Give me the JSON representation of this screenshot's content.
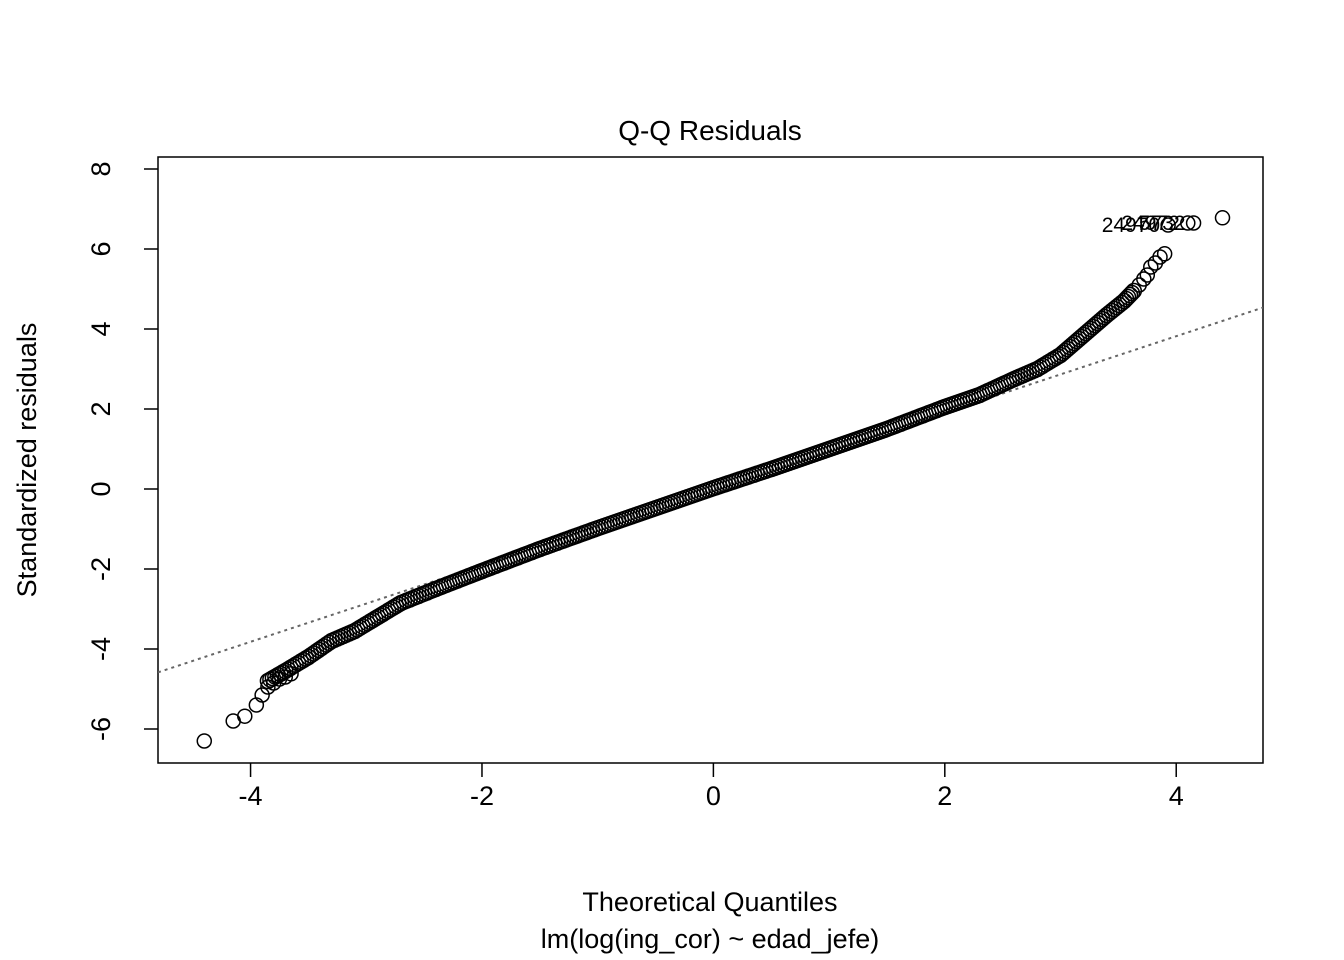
{
  "chart_data": {
    "type": "scatter",
    "title": "Q-Q Residuals",
    "xlabel": "Theoretical Quantiles",
    "sublabel": "lm(log(ing_cor) ~ edad_jefe)",
    "ylabel": "Standardized residuals",
    "xlim": [
      -4.8,
      4.75
    ],
    "ylim": [
      -6.85,
      8.3
    ],
    "x_ticks": [
      -4,
      -2,
      0,
      2,
      4
    ],
    "x_tick_labels": [
      "-4",
      "-2",
      "0",
      "2",
      "4"
    ],
    "y_ticks": [
      -6,
      -4,
      -2,
      0,
      2,
      4,
      6,
      8
    ],
    "y_tick_labels": [
      "-6",
      "-4",
      "-2",
      "0",
      "2",
      "4",
      "6",
      "8"
    ],
    "grid": false,
    "reference_line": {
      "intercept": 0.0,
      "slope": 0.955,
      "style": "dotted",
      "color": "#666666"
    },
    "qq_curve": [
      [
        -3.85,
        -4.8
      ],
      [
        -3.7,
        -4.55
      ],
      [
        -3.5,
        -4.2
      ],
      [
        -3.3,
        -3.8
      ],
      [
        -3.1,
        -3.55
      ],
      [
        -2.9,
        -3.2
      ],
      [
        -2.7,
        -2.85
      ],
      [
        -2.4,
        -2.5
      ],
      [
        -2.0,
        -2.05
      ],
      [
        -1.5,
        -1.5
      ],
      [
        -1.0,
        -0.98
      ],
      [
        -0.5,
        -0.48
      ],
      [
        0.0,
        0.02
      ],
      [
        0.5,
        0.5
      ],
      [
        1.0,
        1.0
      ],
      [
        1.5,
        1.5
      ],
      [
        2.0,
        2.05
      ],
      [
        2.3,
        2.35
      ],
      [
        2.6,
        2.75
      ],
      [
        2.8,
        3.0
      ],
      [
        3.0,
        3.35
      ],
      [
        3.2,
        3.85
      ],
      [
        3.4,
        4.35
      ],
      [
        3.55,
        4.7
      ],
      [
        3.65,
        5.0
      ]
    ],
    "tail_points": [
      [
        -4.4,
        -6.3
      ],
      [
        -4.15,
        -5.8
      ],
      [
        -4.05,
        -5.68
      ],
      [
        -3.95,
        -5.4
      ],
      [
        -3.9,
        -5.15
      ],
      [
        -3.85,
        -4.95
      ],
      [
        -3.8,
        -4.85
      ],
      [
        -3.75,
        -4.75
      ],
      [
        -3.7,
        -4.7
      ],
      [
        -3.65,
        -4.62
      ],
      [
        3.68,
        5.1
      ],
      [
        3.72,
        5.25
      ],
      [
        3.75,
        5.35
      ],
      [
        3.78,
        5.55
      ],
      [
        3.82,
        5.65
      ],
      [
        3.86,
        5.8
      ],
      [
        3.9,
        5.88
      ],
      [
        3.93,
        6.6
      ],
      [
        4.1,
        6.65
      ],
      [
        4.15,
        6.65
      ],
      [
        4.4,
        6.78
      ]
    ],
    "point_labels": [
      {
        "x": 3.93,
        "y": 6.6,
        "text": "24970",
        "anchor": "end"
      },
      {
        "x": 4.1,
        "y": 6.65,
        "text": "24972",
        "anchor": "end"
      },
      {
        "x": 4.15,
        "y": 6.65,
        "text": "5732",
        "anchor": "end"
      }
    ]
  }
}
